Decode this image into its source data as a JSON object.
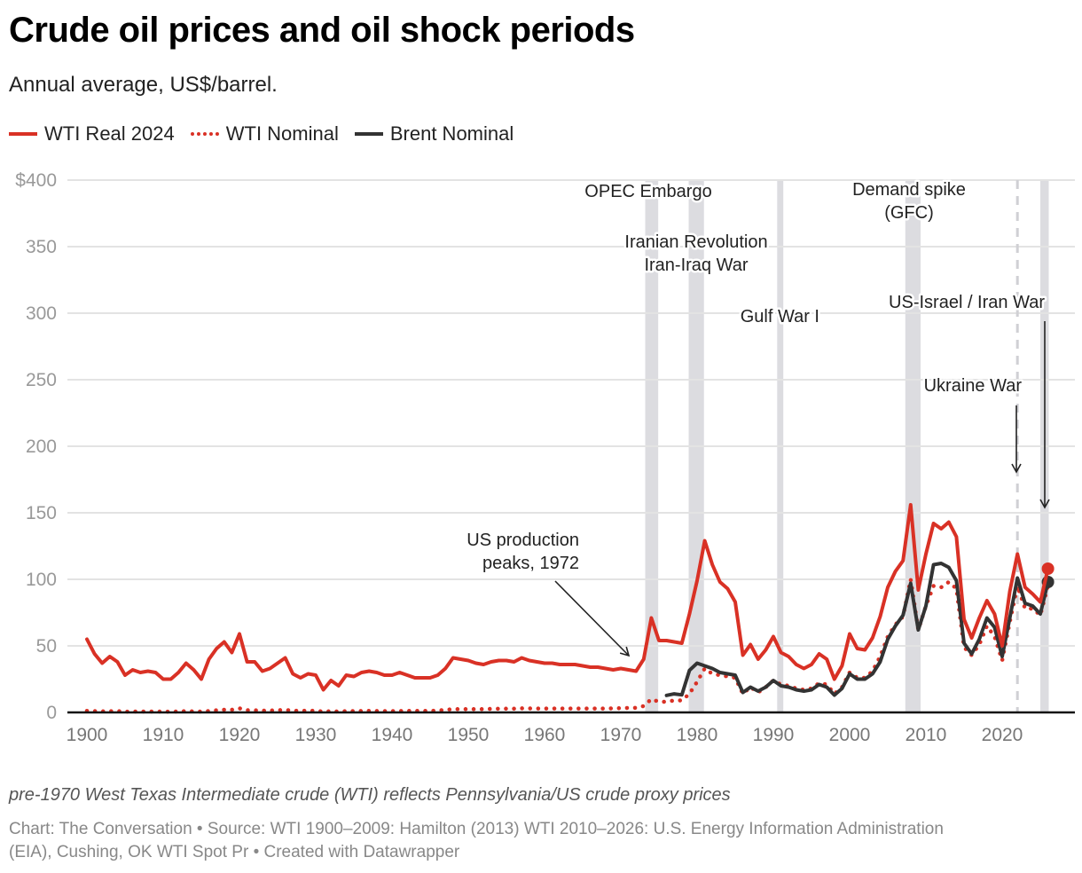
{
  "header": {
    "title": "Crude oil prices and oil shock periods",
    "subtitle": "Annual average, US$/barrel."
  },
  "legend": [
    {
      "label": "WTI Real 2024",
      "style": "solid",
      "color": "#d93125"
    },
    {
      "label": "WTI Nominal",
      "style": "dotted",
      "color": "#d93125"
    },
    {
      "label": "Brent Nominal",
      "style": "solid",
      "color": "#333333"
    }
  ],
  "notes": "pre-1970 West Texas Intermediate crude (WTI) reflects Pennsylvania/US crude proxy prices",
  "footer": {
    "line": "Chart: The Conversation • Source: WTI 1900–2009: Hamilton (2013) WTI 2010–2026: U.S. Energy Information Administration (EIA), Cushing, OK WTI Spot Pr  • Created with Datawrapper"
  },
  "chart_data": {
    "type": "line",
    "title": "Crude oil prices and oil shock periods",
    "subtitle": "Annual average, US$/barrel.",
    "xlabel": "",
    "ylabel": "US$/barrel",
    "xlim": [
      1900,
      2026
    ],
    "ylim": [
      0,
      400
    ],
    "x_ticks": [
      1900,
      1910,
      1920,
      1930,
      1940,
      1950,
      1960,
      1970,
      1980,
      1990,
      2000,
      2010,
      2020
    ],
    "y_ticks": [
      0,
      50,
      100,
      150,
      200,
      250,
      300,
      350,
      400
    ],
    "y_tick_labels": [
      "0",
      "50",
      "100",
      "150",
      "200",
      "250",
      "300",
      "350",
      "$400"
    ],
    "grid": true,
    "legend_position": "top-left",
    "series": [
      {
        "name": "WTI Real 2024",
        "color": "#d93125",
        "style": "solid",
        "start_year": 1900,
        "values": [
          55,
          44,
          37,
          42,
          38,
          28,
          32,
          30,
          31,
          30,
          25,
          25,
          30,
          37,
          32,
          25,
          40,
          48,
          53,
          45,
          59,
          38,
          38,
          31,
          33,
          37,
          41,
          29,
          26,
          29,
          28,
          17,
          24,
          20,
          28,
          27,
          30,
          31,
          30,
          28,
          28,
          30,
          28,
          26,
          26,
          26,
          28,
          33,
          41,
          40,
          39,
          37,
          36,
          38,
          39,
          39,
          38,
          41,
          39,
          38,
          37,
          37,
          36,
          36,
          36,
          35,
          34,
          34,
          33,
          32,
          33,
          32,
          31,
          40,
          71,
          54,
          54,
          53,
          52,
          74,
          99,
          129,
          111,
          98,
          93,
          83,
          43,
          51,
          40,
          47,
          57,
          45,
          42,
          36,
          33,
          36,
          44,
          40,
          25,
          35,
          59,
          48,
          47,
          56,
          72,
          94,
          106,
          114,
          156,
          92,
          119,
          142,
          138,
          143,
          132,
          70,
          56,
          71,
          84,
          74,
          50,
          91,
          119,
          94,
          89,
          83,
          108
        ],
        "end_marker": true
      },
      {
        "name": "WTI Nominal",
        "color": "#d93125",
        "style": "dotted",
        "start_year": 1900,
        "values": [
          1.2,
          1.0,
          0.8,
          0.9,
          1.0,
          0.6,
          0.7,
          0.7,
          0.7,
          0.7,
          0.6,
          0.6,
          0.7,
          1.0,
          0.8,
          0.6,
          1.1,
          1.6,
          2.0,
          2.0,
          3.1,
          1.7,
          1.6,
          1.3,
          1.4,
          1.7,
          1.9,
          1.3,
          1.2,
          1.3,
          1.2,
          0.7,
          0.9,
          0.7,
          1.0,
          1.0,
          1.1,
          1.2,
          1.1,
          1.0,
          1.0,
          1.1,
          1.2,
          1.2,
          1.2,
          1.2,
          1.4,
          1.9,
          2.5,
          2.5,
          2.5,
          2.5,
          2.5,
          2.7,
          2.8,
          2.8,
          2.8,
          3.1,
          3.0,
          2.9,
          2.9,
          2.9,
          2.9,
          2.9,
          2.9,
          2.9,
          2.9,
          2.9,
          2.9,
          3.1,
          3.2,
          3.4,
          3.4,
          4.8,
          10,
          8,
          8,
          9,
          9,
          14,
          23,
          33,
          29,
          28,
          27,
          26,
          14,
          19,
          15,
          19,
          24,
          21,
          20,
          18,
          17,
          18,
          22,
          21,
          14,
          19,
          30,
          26,
          26,
          31,
          42,
          57,
          66,
          72,
          100,
          62,
          80,
          95,
          94,
          98,
          93,
          49,
          43,
          51,
          65,
          57,
          39,
          68,
          95,
          78,
          78,
          73,
          95
        ],
        "end_marker": false
      },
      {
        "name": "Brent Nominal",
        "color": "#333333",
        "style": "solid",
        "start_year": 1976,
        "values": [
          12.8,
          13.9,
          13.2,
          31.6,
          37,
          35,
          33,
          30,
          29,
          28,
          15,
          19,
          16,
          19,
          24,
          20,
          19,
          17,
          16,
          17,
          21,
          19,
          13,
          18,
          29,
          25,
          25,
          29,
          38,
          55,
          65,
          73,
          97,
          62,
          80,
          111,
          112,
          109,
          99,
          52,
          44,
          55,
          71,
          64,
          42,
          71,
          101,
          82,
          80,
          74,
          98
        ],
        "end_marker": true
      }
    ],
    "shaded_periods": [
      {
        "label": "OPEC Embargo",
        "start": 1973.2,
        "end": 1974.9
      },
      {
        "label": "Iranian Revolution Iran-Iraq War",
        "start": 1978.9,
        "end": 1980.9
      },
      {
        "label": "Gulf War I",
        "start": 1990.5,
        "end": 1991.3
      },
      {
        "label": "Demand spike (GFC)",
        "start": 2007.3,
        "end": 2009.3
      },
      {
        "label": "US-Israel / Iran War",
        "start": 2025.0,
        "end": 2026.1
      }
    ],
    "reference_lines": [
      {
        "label": "Ukraine War",
        "x": 2022,
        "style": "dashed"
      }
    ],
    "annotations": [
      {
        "lines": [
          "OPEC Embargo"
        ]
      },
      {
        "lines": [
          "Iranian Revolution",
          "Iran-Iraq War"
        ]
      },
      {
        "lines": [
          "Gulf War I"
        ]
      },
      {
        "lines": [
          "Demand spike",
          "(GFC)"
        ]
      },
      {
        "lines": [
          "US-Israel / Iran War"
        ]
      },
      {
        "lines": [
          "Ukraine War"
        ]
      },
      {
        "lines": [
          "US production",
          "peaks, 1972"
        ]
      }
    ]
  }
}
